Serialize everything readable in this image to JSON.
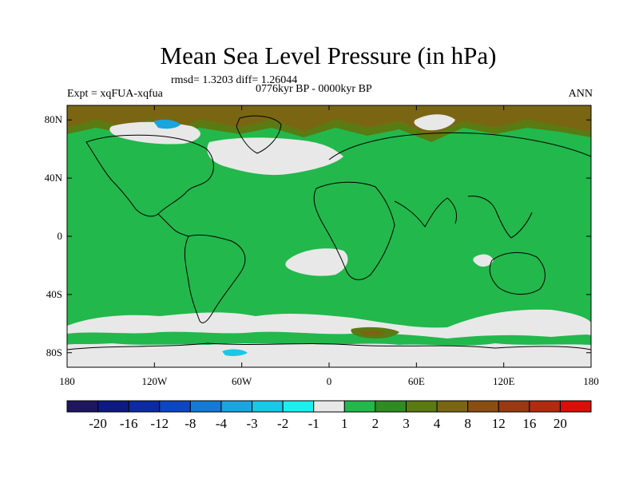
{
  "header": {
    "title": "Mean Sea Level Pressure (in hPa)",
    "stats": "rmsd= 1.3203 diff= 1.26044",
    "period": "0776kyr BP - 0000kyr BP",
    "experiment": "Expt = xqFUA-xqfua",
    "season": "ANN"
  },
  "map": {
    "projection": "cylindrical-equidistant",
    "lon_range": [
      -180,
      180
    ],
    "lat_range": [
      -90,
      90
    ],
    "background_level_color": "#22b84c",
    "lat_ticks": [
      {
        "value": 80,
        "label": "80N"
      },
      {
        "value": 40,
        "label": "40N"
      },
      {
        "value": 0,
        "label": "0"
      },
      {
        "value": -40,
        "label": "40S"
      },
      {
        "value": -80,
        "label": "80S"
      }
    ],
    "lon_ticks": [
      {
        "value": -180,
        "label": "180"
      },
      {
        "value": -120,
        "label": "120W"
      },
      {
        "value": -60,
        "label": "60W"
      },
      {
        "value": 0,
        "label": "0"
      },
      {
        "value": 60,
        "label": "60E"
      },
      {
        "value": 120,
        "label": "120E"
      },
      {
        "value": 180,
        "label": "180"
      }
    ]
  },
  "colorbar": {
    "colors": [
      "#1f1660",
      "#0d1a84",
      "#0b2aa4",
      "#0d46c2",
      "#137ad8",
      "#1aa4e0",
      "#18c8e6",
      "#1cf0ee",
      "#e8e8e8",
      "#22b84c",
      "#2e8c22",
      "#5a7a12",
      "#7a6612",
      "#8a4e12",
      "#9a3812",
      "#b22a10",
      "#d81008"
    ],
    "labels": [
      "-20",
      "-16",
      "-12",
      "-8",
      "-4",
      "-3",
      "-2",
      "-1",
      "1",
      "2",
      "3",
      "4",
      "8",
      "12",
      "16",
      "20"
    ]
  }
}
